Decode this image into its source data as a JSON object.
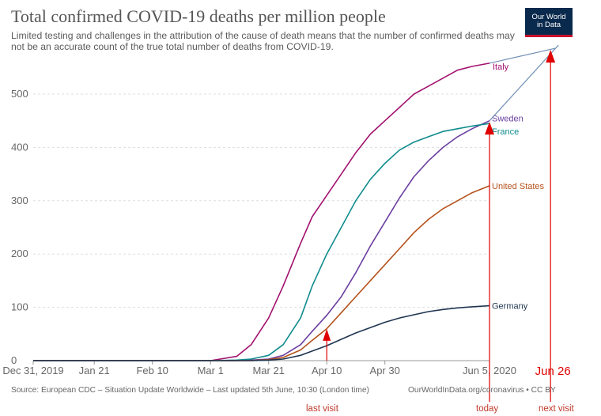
{
  "title": "Total confirmed COVID-19 deaths per million people",
  "subtitle": "Limited testing and challenges in the attribution of the cause of death means that the number of confirmed deaths may not be an accurate count of the true total number of deaths from COVID-19.",
  "logo": {
    "line1": "Our World",
    "line2": "in Data"
  },
  "source": "Source: European CDC – Situation Update Worldwide – Last updated 5th June, 10:30 (London time)",
  "attribution": "OurWorldInData.org/coronavirus • CC BY",
  "colors": {
    "italy": "#a2126f",
    "sweden": "#6b3fa0",
    "france": "#0f8b8d",
    "united_states": "#b5521c",
    "germany": "#1f3550",
    "annotation": "#e00000",
    "projection": "#6f8fb5"
  },
  "chart_data": {
    "type": "line",
    "x": [
      "2019-12-31",
      "2020-01-21",
      "2020-02-10",
      "2020-03-01",
      "2020-03-10",
      "2020-03-15",
      "2020-03-21",
      "2020-03-26",
      "2020-04-01",
      "2020-04-05",
      "2020-04-10",
      "2020-04-15",
      "2020-04-20",
      "2020-04-25",
      "2020-04-30",
      "2020-05-05",
      "2020-05-10",
      "2020-05-15",
      "2020-05-20",
      "2020-05-25",
      "2020-05-30",
      "2020-06-05"
    ],
    "xticks": [
      "Dec 31, 2019",
      "Jan 21",
      "Feb 10",
      "Mar 1",
      "Mar 21",
      "Apr 10",
      "Apr 30",
      "Jun 5, 2020"
    ],
    "yticks": [
      0,
      100,
      200,
      300,
      400,
      500
    ],
    "ylim": [
      0,
      580
    ],
    "series": [
      {
        "name": "Italy",
        "key": "italy",
        "values": [
          0,
          0,
          0,
          0,
          8,
          30,
          80,
          140,
          220,
          270,
          310,
          350,
          390,
          425,
          450,
          475,
          500,
          515,
          530,
          545,
          552,
          558
        ]
      },
      {
        "name": "Sweden",
        "key": "sweden",
        "values": [
          0,
          0,
          0,
          0,
          0,
          1,
          3,
          10,
          30,
          55,
          85,
          120,
          165,
          215,
          260,
          305,
          345,
          375,
          400,
          420,
          435,
          450
        ]
      },
      {
        "name": "France",
        "key": "france",
        "values": [
          0,
          0,
          0,
          0,
          1,
          3,
          10,
          30,
          80,
          140,
          200,
          250,
          300,
          340,
          370,
          395,
          410,
          420,
          430,
          435,
          440,
          445
        ]
      },
      {
        "name": "United States",
        "key": "united_states",
        "values": [
          0,
          0,
          0,
          0,
          0,
          0,
          2,
          6,
          20,
          38,
          60,
          90,
          120,
          150,
          180,
          210,
          240,
          265,
          285,
          300,
          315,
          328
        ]
      },
      {
        "name": "Germany",
        "key": "germany",
        "values": [
          0,
          0,
          0,
          0,
          0,
          0,
          1,
          3,
          10,
          18,
          28,
          40,
          52,
          62,
          72,
          80,
          86,
          92,
          96,
          99,
          101,
          103
        ]
      }
    ],
    "annotations": {
      "projection_date": "Jun 26",
      "projection_value": 580,
      "last_visit_label": "last visit",
      "last_visit_date": "2020-04-10",
      "last_visit_value": 55,
      "today_label": "today",
      "today_date": "2020-06-05",
      "today_value": 445,
      "next_visit_label": "next visit",
      "next_visit_date": "2020-06-26"
    }
  }
}
